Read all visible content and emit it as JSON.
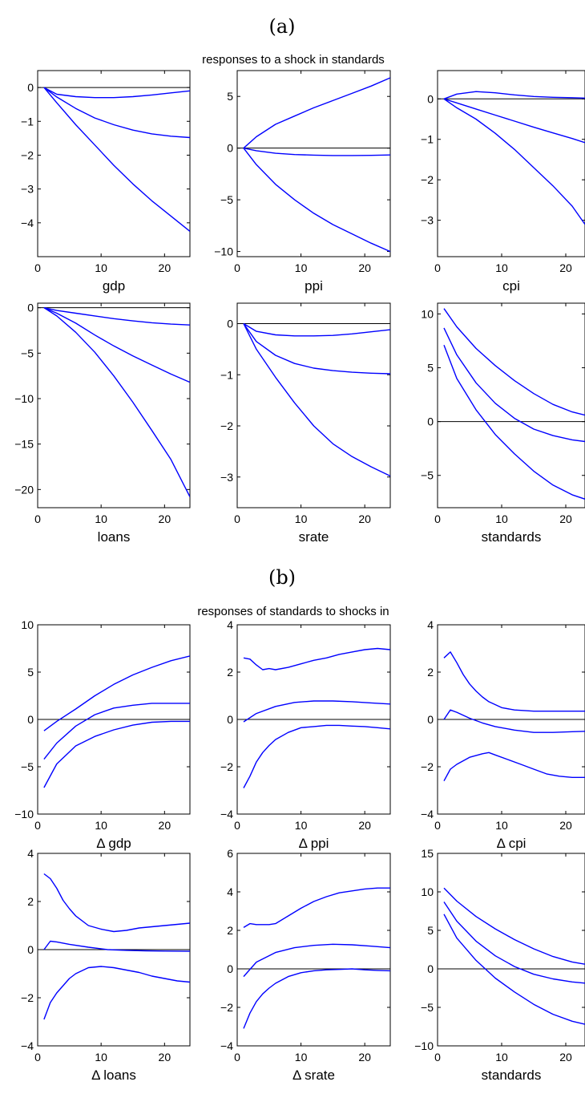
{
  "figure": {
    "panel_a_label": "(a)",
    "panel_b_label": "(b)",
    "section_a_title": "responses to a shock in standards",
    "section_b_title": "responses of standards to shocks in",
    "line_color": "#0000ff",
    "zero_line_color": "#000000"
  },
  "chart_data": [
    {
      "type": "line",
      "section": "a",
      "xlabel": "gdp",
      "xlim": [
        0,
        24
      ],
      "ylim": [
        -5,
        0.5
      ],
      "xticks": [
        0,
        10,
        20
      ],
      "yticks": [
        0,
        -1,
        -2,
        -3,
        -4
      ],
      "zero_line": true,
      "series": [
        {
          "x": [
            1,
            3,
            6,
            9,
            12,
            15,
            18,
            21,
            24
          ],
          "y": [
            0,
            -0.2,
            -0.27,
            -0.3,
            -0.3,
            -0.27,
            -0.22,
            -0.16,
            -0.1
          ]
        },
        {
          "x": [
            1,
            3,
            6,
            9,
            12,
            15,
            18,
            21,
            24
          ],
          "y": [
            0,
            -0.28,
            -0.62,
            -0.9,
            -1.1,
            -1.26,
            -1.37,
            -1.44,
            -1.48
          ]
        },
        {
          "x": [
            1,
            3,
            6,
            9,
            12,
            15,
            18,
            21,
            24
          ],
          "y": [
            0,
            -0.45,
            -1.1,
            -1.7,
            -2.3,
            -2.85,
            -3.35,
            -3.8,
            -4.25
          ]
        }
      ]
    },
    {
      "type": "line",
      "section": "a",
      "xlabel": "ppi",
      "xlim": [
        0,
        24
      ],
      "ylim": [
        -10.5,
        7.5
      ],
      "xticks": [
        0,
        10,
        20
      ],
      "yticks": [
        5,
        0,
        -5,
        -10
      ],
      "zero_line": true,
      "series": [
        {
          "x": [
            1,
            3,
            6,
            9,
            12,
            15,
            18,
            21,
            24
          ],
          "y": [
            0,
            1.1,
            2.3,
            3.1,
            3.9,
            4.6,
            5.3,
            6,
            6.8
          ]
        },
        {
          "x": [
            1,
            3,
            6,
            9,
            12,
            15,
            18,
            21,
            24
          ],
          "y": [
            0,
            -0.25,
            -0.5,
            -0.62,
            -0.68,
            -0.72,
            -0.72,
            -0.7,
            -0.66
          ]
        },
        {
          "x": [
            1,
            3,
            6,
            9,
            12,
            15,
            18,
            21,
            24
          ],
          "y": [
            0,
            -1.6,
            -3.5,
            -5,
            -6.3,
            -7.4,
            -8.3,
            -9.2,
            -10
          ]
        }
      ]
    },
    {
      "type": "line",
      "section": "a",
      "xlabel": "cpi",
      "xlim": [
        0,
        23
      ],
      "ylim": [
        -3.9,
        0.7
      ],
      "xticks": [
        0,
        10,
        20
      ],
      "yticks": [
        0,
        -1,
        -2,
        -3
      ],
      "zero_line": true,
      "series": [
        {
          "x": [
            1,
            3,
            6,
            9,
            12,
            15,
            18,
            21,
            23
          ],
          "y": [
            0,
            0.12,
            0.18,
            0.15,
            0.1,
            0.06,
            0.04,
            0.03,
            0.02
          ]
        },
        {
          "x": [
            1,
            3,
            6,
            9,
            12,
            15,
            18,
            21,
            23
          ],
          "y": [
            0,
            -0.1,
            -0.25,
            -0.4,
            -0.55,
            -0.7,
            -0.84,
            -0.98,
            -1.08
          ]
        },
        {
          "x": [
            1,
            3,
            6,
            9,
            12,
            15,
            18,
            21,
            23
          ],
          "y": [
            0,
            -0.22,
            -0.5,
            -0.85,
            -1.25,
            -1.7,
            -2.15,
            -2.65,
            -3.1
          ]
        }
      ]
    },
    {
      "type": "line",
      "section": "a",
      "xlabel": "loans",
      "xlim": [
        0,
        24
      ],
      "ylim": [
        -22,
        0.5
      ],
      "xticks": [
        0,
        10,
        20
      ],
      "yticks": [
        0,
        -5,
        -10,
        -15,
        -20
      ],
      "zero_line": true,
      "series": [
        {
          "x": [
            1,
            3,
            6,
            9,
            12,
            15,
            18,
            21,
            24
          ],
          "y": [
            0,
            -0.3,
            -0.6,
            -0.9,
            -1.2,
            -1.45,
            -1.65,
            -1.8,
            -1.9
          ]
        },
        {
          "x": [
            1,
            3,
            6,
            9,
            12,
            15,
            18,
            21,
            24
          ],
          "y": [
            0,
            -0.6,
            -1.7,
            -3,
            -4.2,
            -5.3,
            -6.3,
            -7.3,
            -8.2
          ]
        },
        {
          "x": [
            1,
            3,
            6,
            9,
            12,
            15,
            18,
            21,
            24
          ],
          "y": [
            0,
            -0.9,
            -2.7,
            -4.9,
            -7.5,
            -10.4,
            -13.5,
            -16.7,
            -20.8
          ]
        }
      ]
    },
    {
      "type": "line",
      "section": "a",
      "xlabel": "srate",
      "xlim": [
        0,
        24
      ],
      "ylim": [
        -3.6,
        0.4
      ],
      "xticks": [
        0,
        10,
        20
      ],
      "yticks": [
        0,
        -1,
        -2,
        -3
      ],
      "zero_line": true,
      "series": [
        {
          "x": [
            1,
            3,
            6,
            9,
            12,
            15,
            18,
            21,
            24
          ],
          "y": [
            0,
            -0.15,
            -0.22,
            -0.24,
            -0.24,
            -0.23,
            -0.2,
            -0.16,
            -0.12
          ]
        },
        {
          "x": [
            1,
            3,
            6,
            9,
            12,
            15,
            18,
            21,
            24
          ],
          "y": [
            0,
            -0.35,
            -0.62,
            -0.78,
            -0.87,
            -0.92,
            -0.95,
            -0.97,
            -0.98
          ]
        },
        {
          "x": [
            1,
            3,
            6,
            9,
            12,
            15,
            18,
            21,
            24
          ],
          "y": [
            0,
            -0.5,
            -1.05,
            -1.55,
            -2,
            -2.35,
            -2.6,
            -2.8,
            -2.98
          ]
        }
      ]
    },
    {
      "type": "line",
      "section": "a",
      "xlabel": "standards",
      "xlim": [
        0,
        23
      ],
      "ylim": [
        -8,
        11
      ],
      "xticks": [
        0,
        10,
        20
      ],
      "yticks": [
        10,
        5,
        0,
        -5
      ],
      "zero_line": true,
      "series": [
        {
          "x": [
            1,
            3,
            6,
            9,
            12,
            15,
            18,
            21,
            23
          ],
          "y": [
            10.5,
            8.8,
            6.8,
            5.2,
            3.8,
            2.6,
            1.6,
            0.9,
            0.6
          ]
        },
        {
          "x": [
            1,
            3,
            6,
            9,
            12,
            15,
            18,
            21,
            23
          ],
          "y": [
            8.7,
            6.2,
            3.6,
            1.7,
            0.3,
            -0.7,
            -1.3,
            -1.7,
            -1.85
          ]
        },
        {
          "x": [
            1,
            3,
            6,
            9,
            12,
            15,
            18,
            21,
            23
          ],
          "y": [
            7.1,
            4,
            1.1,
            -1.2,
            -3,
            -4.6,
            -5.9,
            -6.8,
            -7.2
          ]
        }
      ]
    },
    {
      "type": "line",
      "section": "b",
      "xlabel": "Δ gdp",
      "xlim": [
        0,
        24
      ],
      "ylim": [
        -10,
        10
      ],
      "xticks": [
        0,
        10,
        20
      ],
      "yticks": [
        10,
        5,
        0,
        -5,
        -10
      ],
      "zero_line": true,
      "series": [
        {
          "x": [
            1,
            3,
            6,
            9,
            12,
            15,
            18,
            21,
            24
          ],
          "y": [
            -1.2,
            -0.2,
            1.1,
            2.5,
            3.7,
            4.7,
            5.5,
            6.2,
            6.7
          ]
        },
        {
          "x": [
            1,
            3,
            6,
            9,
            12,
            15,
            18,
            21,
            24
          ],
          "y": [
            -4.2,
            -2.5,
            -0.7,
            0.5,
            1.2,
            1.5,
            1.7,
            1.7,
            1.7
          ]
        },
        {
          "x": [
            1,
            3,
            6,
            9,
            12,
            15,
            18,
            21,
            24
          ],
          "y": [
            -7.2,
            -4.7,
            -2.8,
            -1.8,
            -1.1,
            -0.6,
            -0.3,
            -0.2,
            -0.2
          ]
        }
      ]
    },
    {
      "type": "line",
      "section": "b",
      "xlabel": "Δ ppi",
      "xlim": [
        0,
        24
      ],
      "ylim": [
        -4,
        4
      ],
      "xticks": [
        0,
        10,
        20
      ],
      "yticks": [
        4,
        2,
        0,
        -2,
        -4
      ],
      "zero_line": true,
      "series": [
        {
          "x": [
            1,
            2,
            3,
            4,
            5,
            6,
            8,
            10,
            12,
            14,
            16,
            18,
            20,
            22,
            24
          ],
          "y": [
            2.6,
            2.55,
            2.3,
            2.1,
            2.15,
            2.1,
            2.2,
            2.35,
            2.5,
            2.6,
            2.75,
            2.85,
            2.95,
            3.0,
            2.95
          ]
        },
        {
          "x": [
            1,
            3,
            6,
            9,
            12,
            15,
            18,
            21,
            24
          ],
          "y": [
            -0.1,
            0.25,
            0.55,
            0.72,
            0.78,
            0.78,
            0.75,
            0.7,
            0.65
          ]
        },
        {
          "x": [
            1,
            2,
            3,
            4,
            5,
            6,
            8,
            10,
            12,
            14,
            16,
            18,
            20,
            22,
            24
          ],
          "y": [
            -2.9,
            -2.4,
            -1.8,
            -1.4,
            -1.1,
            -0.85,
            -0.55,
            -0.35,
            -0.3,
            -0.25,
            -0.25,
            -0.28,
            -0.3,
            -0.35,
            -0.4
          ]
        }
      ]
    },
    {
      "type": "line",
      "section": "b",
      "xlabel": "Δ cpi",
      "xlim": [
        0,
        23
      ],
      "ylim": [
        -4,
        4
      ],
      "xticks": [
        0,
        10,
        20
      ],
      "yticks": [
        4,
        2,
        0,
        -2,
        -4
      ],
      "zero_line": true,
      "series": [
        {
          "x": [
            1,
            2,
            3,
            4,
            5,
            6,
            7,
            8,
            10,
            12,
            15,
            18,
            21,
            23
          ],
          "y": [
            2.6,
            2.85,
            2.4,
            1.9,
            1.5,
            1.2,
            0.95,
            0.75,
            0.5,
            0.4,
            0.35,
            0.35,
            0.35,
            0.35
          ]
        },
        {
          "x": [
            1,
            2,
            3,
            5,
            7,
            9,
            12,
            15,
            18,
            21,
            23
          ],
          "y": [
            0,
            0.4,
            0.3,
            0.05,
            -0.15,
            -0.3,
            -0.45,
            -0.55,
            -0.55,
            -0.52,
            -0.5
          ]
        },
        {
          "x": [
            1,
            2,
            3,
            5,
            7,
            8,
            9,
            11,
            13,
            15,
            17,
            19,
            21,
            23
          ],
          "y": [
            -2.6,
            -2.1,
            -1.9,
            -1.6,
            -1.45,
            -1.4,
            -1.5,
            -1.7,
            -1.9,
            -2.1,
            -2.3,
            -2.4,
            -2.45,
            -2.45
          ]
        }
      ]
    },
    {
      "type": "line",
      "section": "b",
      "xlabel": "Δ loans",
      "xlim": [
        0,
        24
      ],
      "ylim": [
        -4,
        4
      ],
      "xticks": [
        0,
        10,
        20
      ],
      "yticks": [
        4,
        2,
        0,
        -2,
        -4
      ],
      "zero_line": true,
      "series": [
        {
          "x": [
            1,
            2,
            3,
            4,
            5,
            6,
            8,
            10,
            12,
            14,
            16,
            18,
            20,
            22,
            24
          ],
          "y": [
            3.15,
            2.95,
            2.55,
            2.05,
            1.7,
            1.4,
            1.0,
            0.85,
            0.75,
            0.8,
            0.9,
            0.95,
            1.0,
            1.05,
            1.1
          ]
        },
        {
          "x": [
            1,
            2,
            3,
            5,
            8,
            11,
            14,
            17,
            20,
            24
          ],
          "y": [
            0,
            0.35,
            0.32,
            0.22,
            0.1,
            0.0,
            -0.03,
            -0.05,
            -0.06,
            -0.07
          ]
        },
        {
          "x": [
            1,
            2,
            3,
            4,
            5,
            6,
            8,
            10,
            12,
            14,
            16,
            18,
            20,
            22,
            24
          ],
          "y": [
            -2.9,
            -2.2,
            -1.8,
            -1.5,
            -1.2,
            -1.0,
            -0.75,
            -0.7,
            -0.75,
            -0.85,
            -0.95,
            -1.1,
            -1.2,
            -1.3,
            -1.35
          ]
        }
      ]
    },
    {
      "type": "line",
      "section": "b",
      "xlabel": "Δ srate",
      "xlim": [
        0,
        24
      ],
      "ylim": [
        -4,
        6
      ],
      "xticks": [
        0,
        10,
        20
      ],
      "yticks": [
        6,
        4,
        2,
        0,
        -2,
        -4
      ],
      "zero_line": true,
      "series": [
        {
          "x": [
            1,
            2,
            3,
            4,
            5,
            6,
            8,
            10,
            12,
            14,
            16,
            18,
            20,
            22,
            24
          ],
          "y": [
            2.15,
            2.35,
            2.3,
            2.3,
            2.3,
            2.35,
            2.75,
            3.15,
            3.5,
            3.75,
            3.95,
            4.05,
            4.15,
            4.2,
            4.2
          ]
        },
        {
          "x": [
            1,
            3,
            6,
            9,
            12,
            15,
            18,
            21,
            24
          ],
          "y": [
            -0.4,
            0.35,
            0.85,
            1.1,
            1.22,
            1.28,
            1.25,
            1.18,
            1.1
          ]
        },
        {
          "x": [
            1,
            2,
            3,
            4,
            5,
            6,
            8,
            10,
            12,
            14,
            16,
            18,
            20,
            22,
            24
          ],
          "y": [
            -3.1,
            -2.3,
            -1.7,
            -1.3,
            -1.0,
            -0.75,
            -0.4,
            -0.2,
            -0.1,
            -0.05,
            -0.03,
            0.0,
            -0.05,
            -0.08,
            -0.1
          ]
        }
      ]
    },
    {
      "type": "line",
      "section": "b",
      "xlabel": "standards",
      "xlim": [
        0,
        23
      ],
      "ylim": [
        -10,
        15
      ],
      "xticks": [
        0,
        10,
        20
      ],
      "yticks": [
        15,
        10,
        5,
        0,
        -5,
        -10
      ],
      "zero_line": true,
      "series": [
        {
          "x": [
            1,
            3,
            6,
            9,
            12,
            15,
            18,
            21,
            23
          ],
          "y": [
            10.5,
            8.8,
            6.8,
            5.2,
            3.8,
            2.6,
            1.6,
            0.9,
            0.6
          ]
        },
        {
          "x": [
            1,
            3,
            6,
            9,
            12,
            15,
            18,
            21,
            23
          ],
          "y": [
            8.7,
            6.2,
            3.6,
            1.7,
            0.3,
            -0.7,
            -1.3,
            -1.7,
            -1.85
          ]
        },
        {
          "x": [
            1,
            3,
            6,
            9,
            12,
            15,
            18,
            21,
            23
          ],
          "y": [
            7.1,
            4,
            1.1,
            -1.2,
            -3,
            -4.6,
            -5.9,
            -6.8,
            -7.2
          ]
        }
      ]
    }
  ]
}
